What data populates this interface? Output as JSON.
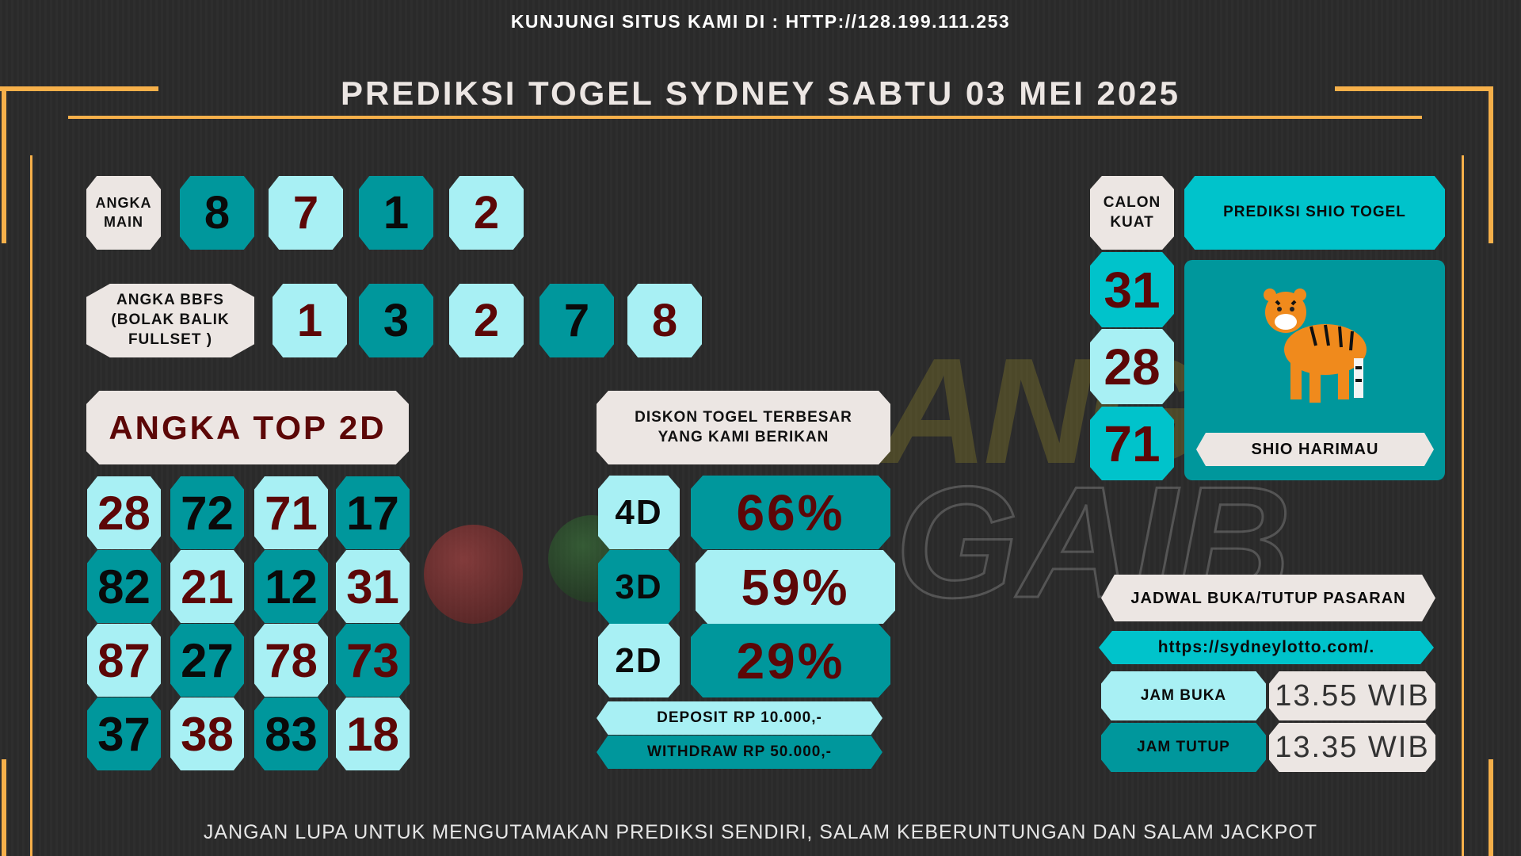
{
  "header": {
    "visit_text": "KUNJUNGI SITUS KAMI DI : HTTP://128.199.111.253",
    "title": "PREDIKSI TOGEL SYDNEY SABTU 03 MEI 2025"
  },
  "angka_main": {
    "label": "ANGKA MAIN",
    "numbers": [
      "8",
      "7",
      "1",
      "2"
    ]
  },
  "bbfs": {
    "label": "ANGKA BBFS (BOLAK BALIK FULLSET )",
    "numbers": [
      "1",
      "3",
      "2",
      "7",
      "8"
    ]
  },
  "top2d": {
    "label": "ANGKA TOP 2D",
    "rows": [
      [
        "28",
        "72",
        "71",
        "17"
      ],
      [
        "82",
        "21",
        "12",
        "31"
      ],
      [
        "87",
        "27",
        "78",
        "73"
      ],
      [
        "37",
        "38",
        "83",
        "18"
      ]
    ]
  },
  "diskon": {
    "label": "DISKON TOGEL TERBESAR YANG KAMI BERIKAN",
    "items": [
      {
        "type": "4D",
        "value": "66%"
      },
      {
        "type": "3D",
        "value": "59%"
      },
      {
        "type": "2D",
        "value": "29%"
      }
    ],
    "deposit": "DEPOSIT RP 10.000,-",
    "withdraw": "WITHDRAW RP 50.000,-"
  },
  "calon_kuat": {
    "label": "CALON KUAT",
    "numbers": [
      "31",
      "28",
      "71"
    ]
  },
  "shio": {
    "header": "PREDIKSI SHIO TOGEL",
    "name": "SHIO HARIMAU",
    "icon": "tiger-icon"
  },
  "jadwal": {
    "label": "JADWAL BUKA/TUTUP PASARAN",
    "url": "https://sydneylotto.com/.",
    "buka_label": "JAM BUKA",
    "buka_value": "13.55 WIB",
    "tutup_label": "JAM TUTUP",
    "tutup_value": "13.35 WIB"
  },
  "watermark": {
    "logo": "ANGKA GAIB"
  },
  "footer": {
    "text": "JANGAN LUPA UNTUK MENGUTAMAKAN PREDIKSI SENDIRI, SALAM KEBERUNTUNGAN DAN SALAM JACKPOT"
  },
  "colors": {
    "dark_teal": "#00979c",
    "light_cyan": "#a8f0f4",
    "cyan": "#00c3cb",
    "cream": "#ece6e3",
    "maroon": "#5c0707",
    "orange": "#f6b04a"
  }
}
